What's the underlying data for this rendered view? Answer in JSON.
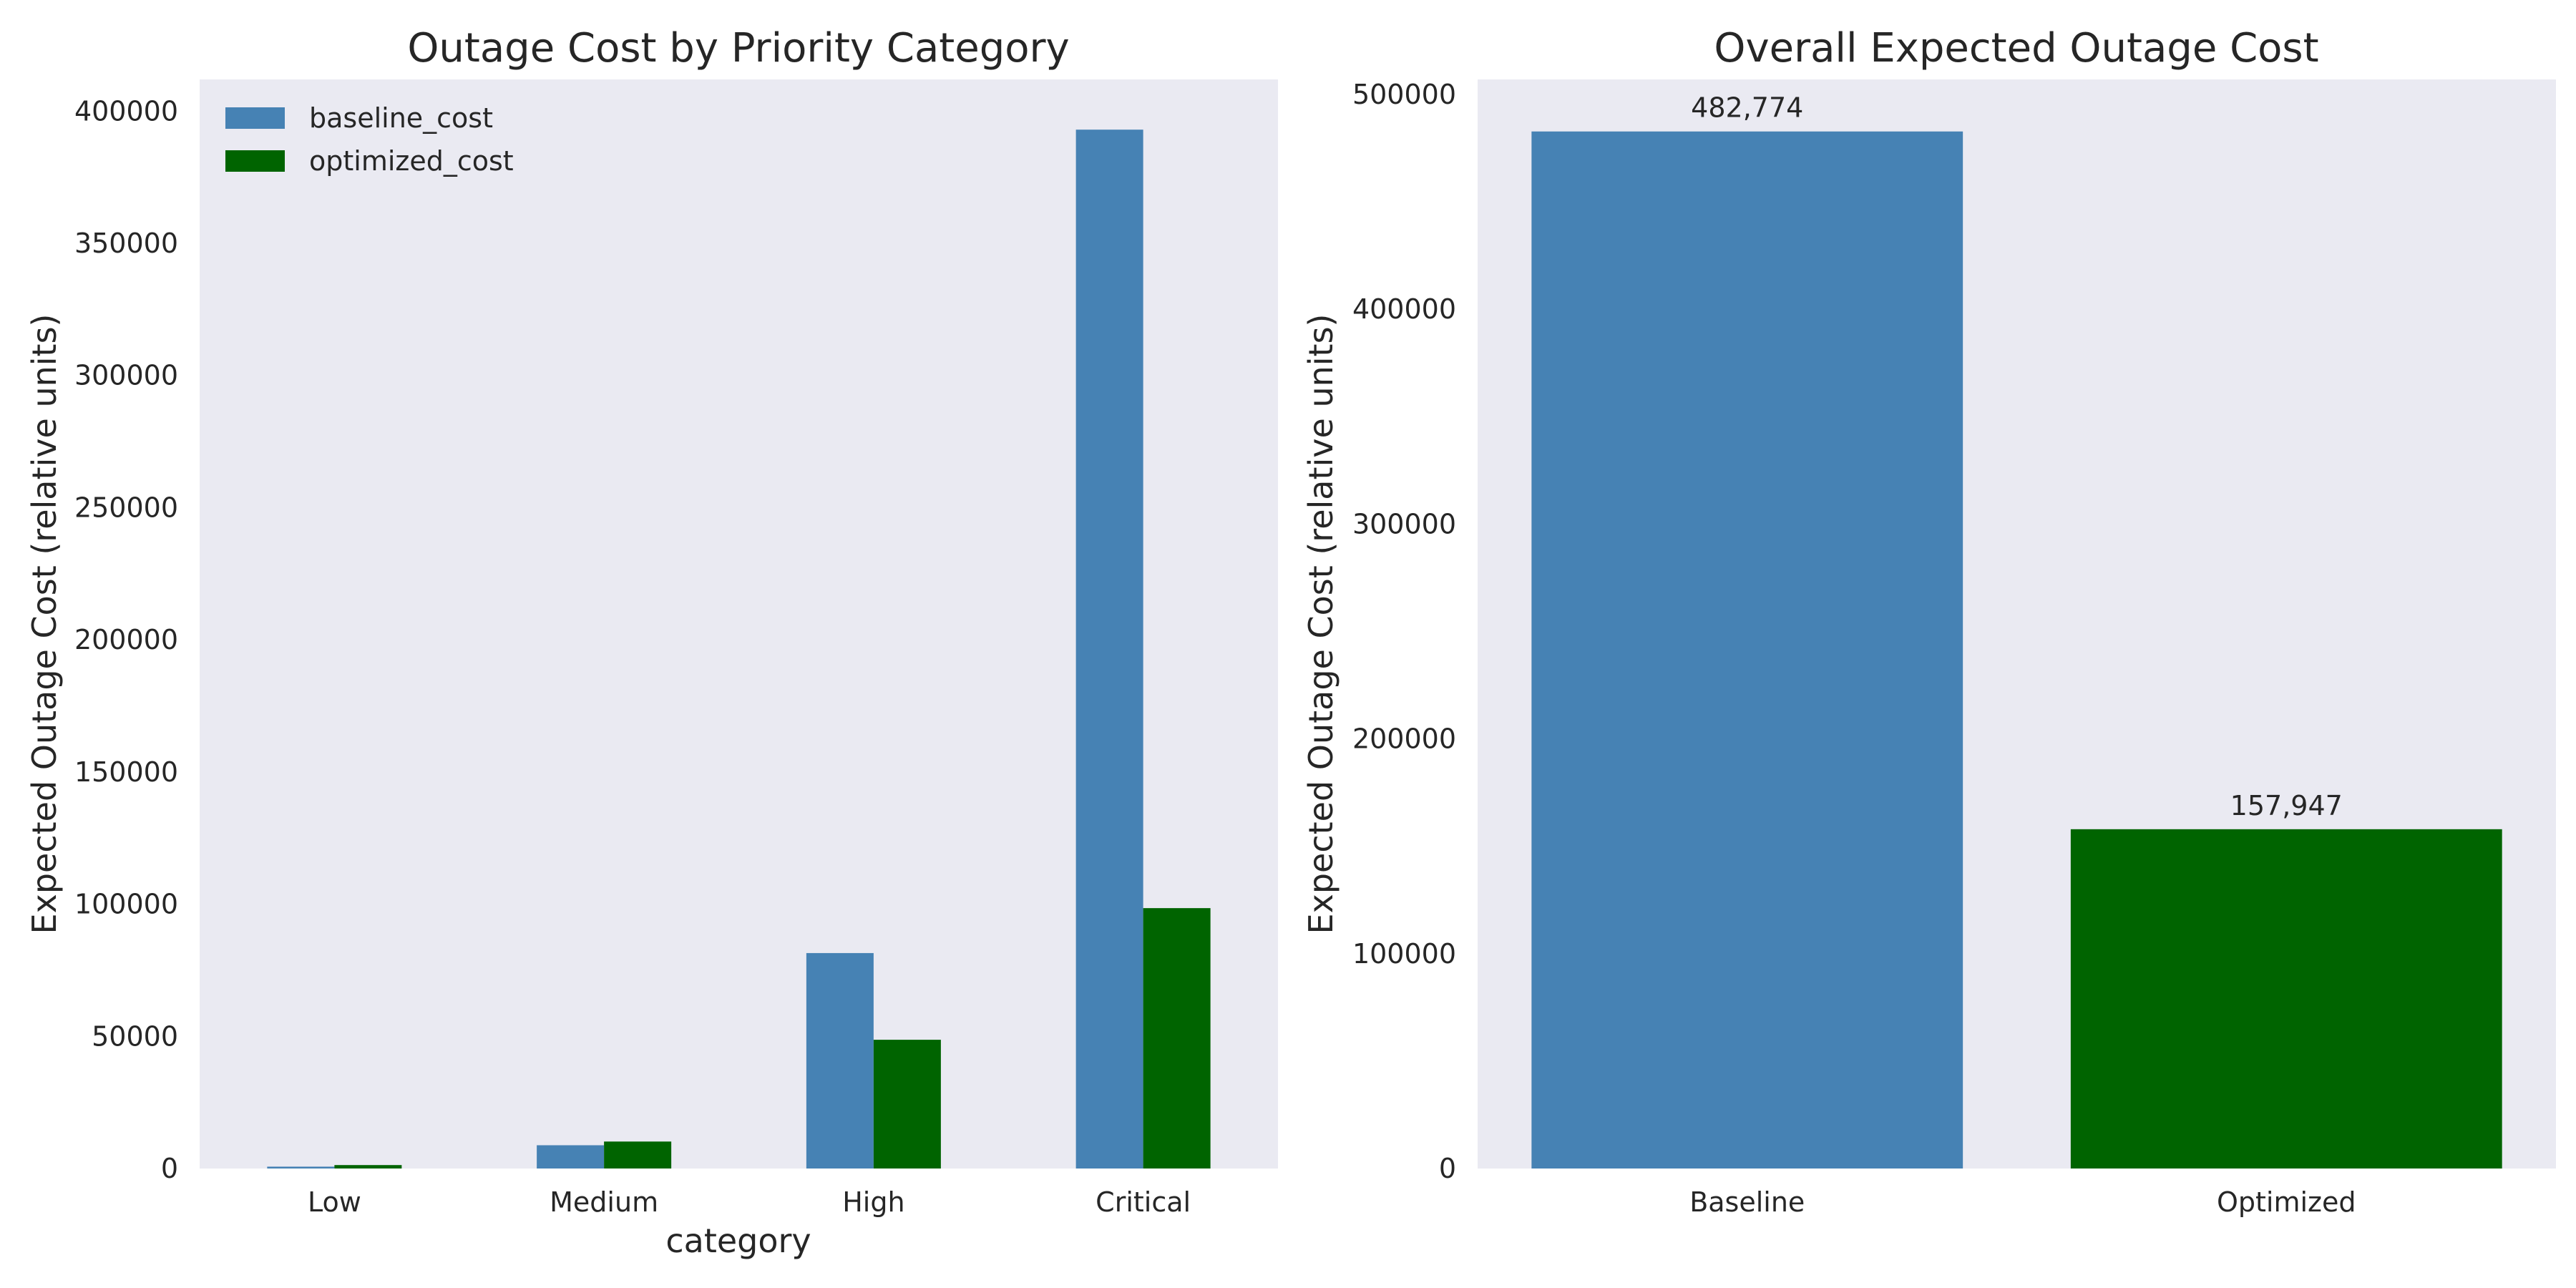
{
  "chart_data": [
    {
      "type": "bar",
      "title": "Outage Cost by Priority Category",
      "xlabel": "category",
      "ylabel": "Expected Outage Cost (relative units)",
      "categories": [
        "Low",
        "Medium",
        "High",
        "Critical"
      ],
      "series": [
        {
          "name": "baseline_cost",
          "color": "#4682b4",
          "values": [
            700,
            8800,
            81500,
            393000
          ]
        },
        {
          "name": "optimized_cost",
          "color": "#006400",
          "values": [
            1300,
            10200,
            48700,
            98500
          ]
        }
      ],
      "ylim": [
        0,
        412000
      ],
      "yticks": [
        0,
        50000,
        100000,
        150000,
        200000,
        250000,
        300000,
        350000,
        400000
      ],
      "grid": false,
      "legend_position": "top-left"
    },
    {
      "type": "bar",
      "title": "Overall Expected Outage Cost",
      "xlabel": "",
      "ylabel": "Expected Outage Cost (relative units)",
      "categories": [
        "Baseline",
        "Optimized"
      ],
      "values": [
        482774,
        157947
      ],
      "value_labels": [
        "482,774",
        "157,947"
      ],
      "colors": [
        "#4682b4",
        "#006400"
      ],
      "ylim": [
        0,
        507000
      ],
      "yticks": [
        0,
        100000,
        200000,
        300000,
        400000,
        500000
      ],
      "grid": false
    }
  ]
}
